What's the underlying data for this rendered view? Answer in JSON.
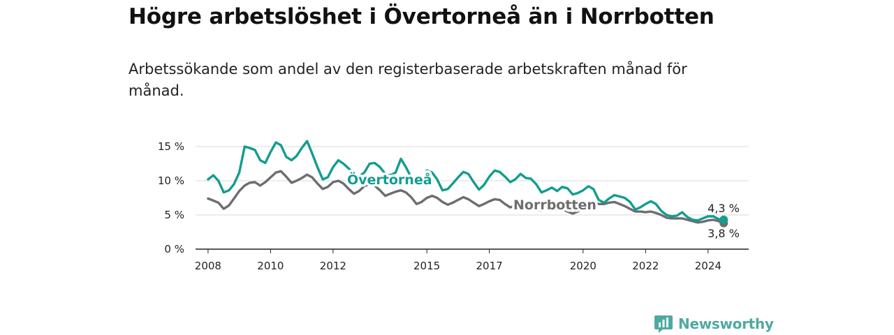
{
  "header": {
    "title": "Högre arbetslöshet i Övertorneå än i Norrbotten",
    "subtitle": "Arbetssökande som andel av den registerbaserade arbetskraften månad för månad."
  },
  "brand": {
    "name": "Newsworthy",
    "icon": "newsworthy-logo-icon"
  },
  "colors": {
    "overtornea": "#129d8f",
    "norrbotten": "#6d6d70",
    "grid": "#d9d9d9",
    "axis": "#222222"
  },
  "chart_data": {
    "type": "line",
    "title": "Högre arbetslöshet i Övertorneå än i Norrbotten",
    "subtitle": "Arbetssökande som andel av den registerbaserade arbetskraften månad för månad.",
    "x_unit": "year",
    "xlim": [
      2007.6,
      2025.3
    ],
    "ylim": [
      0,
      16
    ],
    "grid": true,
    "y_ticks": [
      0,
      5,
      10,
      15
    ],
    "y_tick_labels": [
      "0 %",
      "5 %",
      "10 %",
      "15 %"
    ],
    "x_ticks": [
      2008,
      2010,
      2012,
      2015,
      2017,
      2020,
      2022,
      2024
    ],
    "x_tick_labels": [
      "2008",
      "2010",
      "2012",
      "2015",
      "2017",
      "2020",
      "2022",
      "2024"
    ],
    "series": [
      {
        "name": "Övertorneå",
        "end_label": "4,3 %",
        "points": [
          [
            2008.0,
            10.2
          ],
          [
            2008.17,
            10.8
          ],
          [
            2008.33,
            10.0
          ],
          [
            2008.5,
            8.3
          ],
          [
            2008.67,
            8.6
          ],
          [
            2008.83,
            9.5
          ],
          [
            2009.0,
            11.2
          ],
          [
            2009.17,
            15.0
          ],
          [
            2009.33,
            14.8
          ],
          [
            2009.5,
            14.5
          ],
          [
            2009.67,
            13.0
          ],
          [
            2009.83,
            12.6
          ],
          [
            2010.0,
            14.2
          ],
          [
            2010.17,
            15.6
          ],
          [
            2010.33,
            15.2
          ],
          [
            2010.5,
            13.5
          ],
          [
            2010.67,
            13.0
          ],
          [
            2010.83,
            13.6
          ],
          [
            2011.0,
            14.8
          ],
          [
            2011.17,
            15.8
          ],
          [
            2011.33,
            14.0
          ],
          [
            2011.5,
            12.0
          ],
          [
            2011.67,
            10.2
          ],
          [
            2011.83,
            10.5
          ],
          [
            2012.0,
            12.0
          ],
          [
            2012.17,
            13.0
          ],
          [
            2012.33,
            12.5
          ],
          [
            2012.5,
            11.8
          ],
          [
            2012.67,
            11.0
          ],
          [
            2012.83,
            10.6
          ],
          [
            2013.0,
            11.2
          ],
          [
            2013.17,
            12.5
          ],
          [
            2013.33,
            12.6
          ],
          [
            2013.5,
            12.0
          ],
          [
            2013.67,
            11.0
          ],
          [
            2013.83,
            10.8
          ],
          [
            2014.0,
            11.2
          ],
          [
            2014.17,
            13.2
          ],
          [
            2014.33,
            12.0
          ],
          [
            2014.5,
            10.5
          ],
          [
            2014.67,
            9.5
          ],
          [
            2014.83,
            10.0
          ],
          [
            2015.0,
            11.5
          ],
          [
            2015.17,
            11.2
          ],
          [
            2015.33,
            10.2
          ],
          [
            2015.5,
            8.6
          ],
          [
            2015.67,
            8.8
          ],
          [
            2015.83,
            9.6
          ],
          [
            2016.0,
            10.5
          ],
          [
            2016.17,
            11.3
          ],
          [
            2016.33,
            11.0
          ],
          [
            2016.5,
            9.8
          ],
          [
            2016.67,
            8.7
          ],
          [
            2016.83,
            9.4
          ],
          [
            2017.0,
            10.6
          ],
          [
            2017.17,
            11.5
          ],
          [
            2017.33,
            11.3
          ],
          [
            2017.5,
            10.6
          ],
          [
            2017.67,
            9.8
          ],
          [
            2017.83,
            10.2
          ],
          [
            2018.0,
            11.0
          ],
          [
            2018.17,
            10.4
          ],
          [
            2018.33,
            10.3
          ],
          [
            2018.5,
            9.5
          ],
          [
            2018.67,
            8.3
          ],
          [
            2018.83,
            8.6
          ],
          [
            2019.0,
            9.0
          ],
          [
            2019.17,
            8.5
          ],
          [
            2019.33,
            9.1
          ],
          [
            2019.5,
            8.9
          ],
          [
            2019.67,
            8.0
          ],
          [
            2019.83,
            8.2
          ],
          [
            2020.0,
            8.6
          ],
          [
            2020.17,
            9.2
          ],
          [
            2020.33,
            8.8
          ],
          [
            2020.5,
            7.2
          ],
          [
            2020.67,
            6.8
          ],
          [
            2020.83,
            7.4
          ],
          [
            2021.0,
            7.9
          ],
          [
            2021.17,
            7.7
          ],
          [
            2021.33,
            7.5
          ],
          [
            2021.5,
            6.9
          ],
          [
            2021.67,
            5.8
          ],
          [
            2021.83,
            6.1
          ],
          [
            2022.0,
            6.6
          ],
          [
            2022.17,
            7.0
          ],
          [
            2022.33,
            6.6
          ],
          [
            2022.5,
            5.6
          ],
          [
            2022.67,
            5.0
          ],
          [
            2022.83,
            4.8
          ],
          [
            2023.0,
            4.9
          ],
          [
            2023.17,
            5.4
          ],
          [
            2023.33,
            4.7
          ],
          [
            2023.5,
            4.3
          ],
          [
            2023.67,
            4.2
          ],
          [
            2023.83,
            4.5
          ],
          [
            2024.0,
            4.8
          ],
          [
            2024.17,
            4.8
          ],
          [
            2024.33,
            4.4
          ],
          [
            2024.5,
            4.3
          ]
        ]
      },
      {
        "name": "Norrbotten",
        "end_label": "3,8 %",
        "points": [
          [
            2008.0,
            7.4
          ],
          [
            2008.17,
            7.1
          ],
          [
            2008.33,
            6.8
          ],
          [
            2008.5,
            5.9
          ],
          [
            2008.67,
            6.4
          ],
          [
            2008.83,
            7.4
          ],
          [
            2009.0,
            8.5
          ],
          [
            2009.17,
            9.3
          ],
          [
            2009.33,
            9.7
          ],
          [
            2009.5,
            9.8
          ],
          [
            2009.67,
            9.3
          ],
          [
            2009.83,
            9.8
          ],
          [
            2010.0,
            10.5
          ],
          [
            2010.17,
            11.2
          ],
          [
            2010.33,
            11.4
          ],
          [
            2010.5,
            10.6
          ],
          [
            2010.67,
            9.7
          ],
          [
            2010.83,
            10.0
          ],
          [
            2011.0,
            10.4
          ],
          [
            2011.17,
            10.9
          ],
          [
            2011.33,
            10.5
          ],
          [
            2011.5,
            9.6
          ],
          [
            2011.67,
            8.8
          ],
          [
            2011.83,
            9.1
          ],
          [
            2012.0,
            9.8
          ],
          [
            2012.17,
            10.0
          ],
          [
            2012.33,
            9.6
          ],
          [
            2012.5,
            8.8
          ],
          [
            2012.67,
            8.1
          ],
          [
            2012.83,
            8.5
          ],
          [
            2013.0,
            9.2
          ],
          [
            2013.17,
            9.5
          ],
          [
            2013.33,
            9.3
          ],
          [
            2013.5,
            8.6
          ],
          [
            2013.67,
            7.8
          ],
          [
            2013.83,
            8.1
          ],
          [
            2014.0,
            8.4
          ],
          [
            2014.17,
            8.6
          ],
          [
            2014.33,
            8.3
          ],
          [
            2014.5,
            7.6
          ],
          [
            2014.67,
            6.6
          ],
          [
            2014.83,
            6.9
          ],
          [
            2015.0,
            7.5
          ],
          [
            2015.17,
            7.8
          ],
          [
            2015.33,
            7.5
          ],
          [
            2015.5,
            6.9
          ],
          [
            2015.67,
            6.5
          ],
          [
            2015.83,
            6.8
          ],
          [
            2016.0,
            7.2
          ],
          [
            2016.17,
            7.6
          ],
          [
            2016.33,
            7.3
          ],
          [
            2016.5,
            6.8
          ],
          [
            2016.67,
            6.3
          ],
          [
            2016.83,
            6.6
          ],
          [
            2017.0,
            7.0
          ],
          [
            2017.17,
            7.3
          ],
          [
            2017.33,
            7.2
          ],
          [
            2017.5,
            6.6
          ],
          [
            2017.67,
            6.1
          ],
          [
            2017.83,
            6.4
          ],
          [
            2018.0,
            6.5
          ],
          [
            2018.17,
            6.5
          ],
          [
            2018.33,
            6.3
          ],
          [
            2018.5,
            5.9
          ],
          [
            2018.67,
            5.6
          ],
          [
            2018.83,
            5.9
          ],
          [
            2019.0,
            6.1
          ],
          [
            2019.17,
            6.1
          ],
          [
            2019.33,
            5.9
          ],
          [
            2019.5,
            5.5
          ],
          [
            2019.67,
            5.2
          ],
          [
            2019.83,
            5.5
          ],
          [
            2020.0,
            6.0
          ],
          [
            2020.17,
            6.6
          ],
          [
            2020.33,
            6.9
          ],
          [
            2020.5,
            6.6
          ],
          [
            2020.67,
            6.6
          ],
          [
            2020.83,
            6.8
          ],
          [
            2021.0,
            6.9
          ],
          [
            2021.17,
            6.6
          ],
          [
            2021.33,
            6.3
          ],
          [
            2021.5,
            5.9
          ],
          [
            2021.67,
            5.5
          ],
          [
            2021.83,
            5.5
          ],
          [
            2022.0,
            5.4
          ],
          [
            2022.17,
            5.5
          ],
          [
            2022.33,
            5.3
          ],
          [
            2022.5,
            5.0
          ],
          [
            2022.67,
            4.6
          ],
          [
            2022.83,
            4.5
          ],
          [
            2023.0,
            4.5
          ],
          [
            2023.17,
            4.5
          ],
          [
            2023.33,
            4.3
          ],
          [
            2023.5,
            4.1
          ],
          [
            2023.67,
            3.9
          ],
          [
            2023.83,
            4.0
          ],
          [
            2024.0,
            4.2
          ],
          [
            2024.17,
            4.3
          ],
          [
            2024.33,
            4.1
          ],
          [
            2024.5,
            3.8
          ]
        ]
      }
    ]
  }
}
